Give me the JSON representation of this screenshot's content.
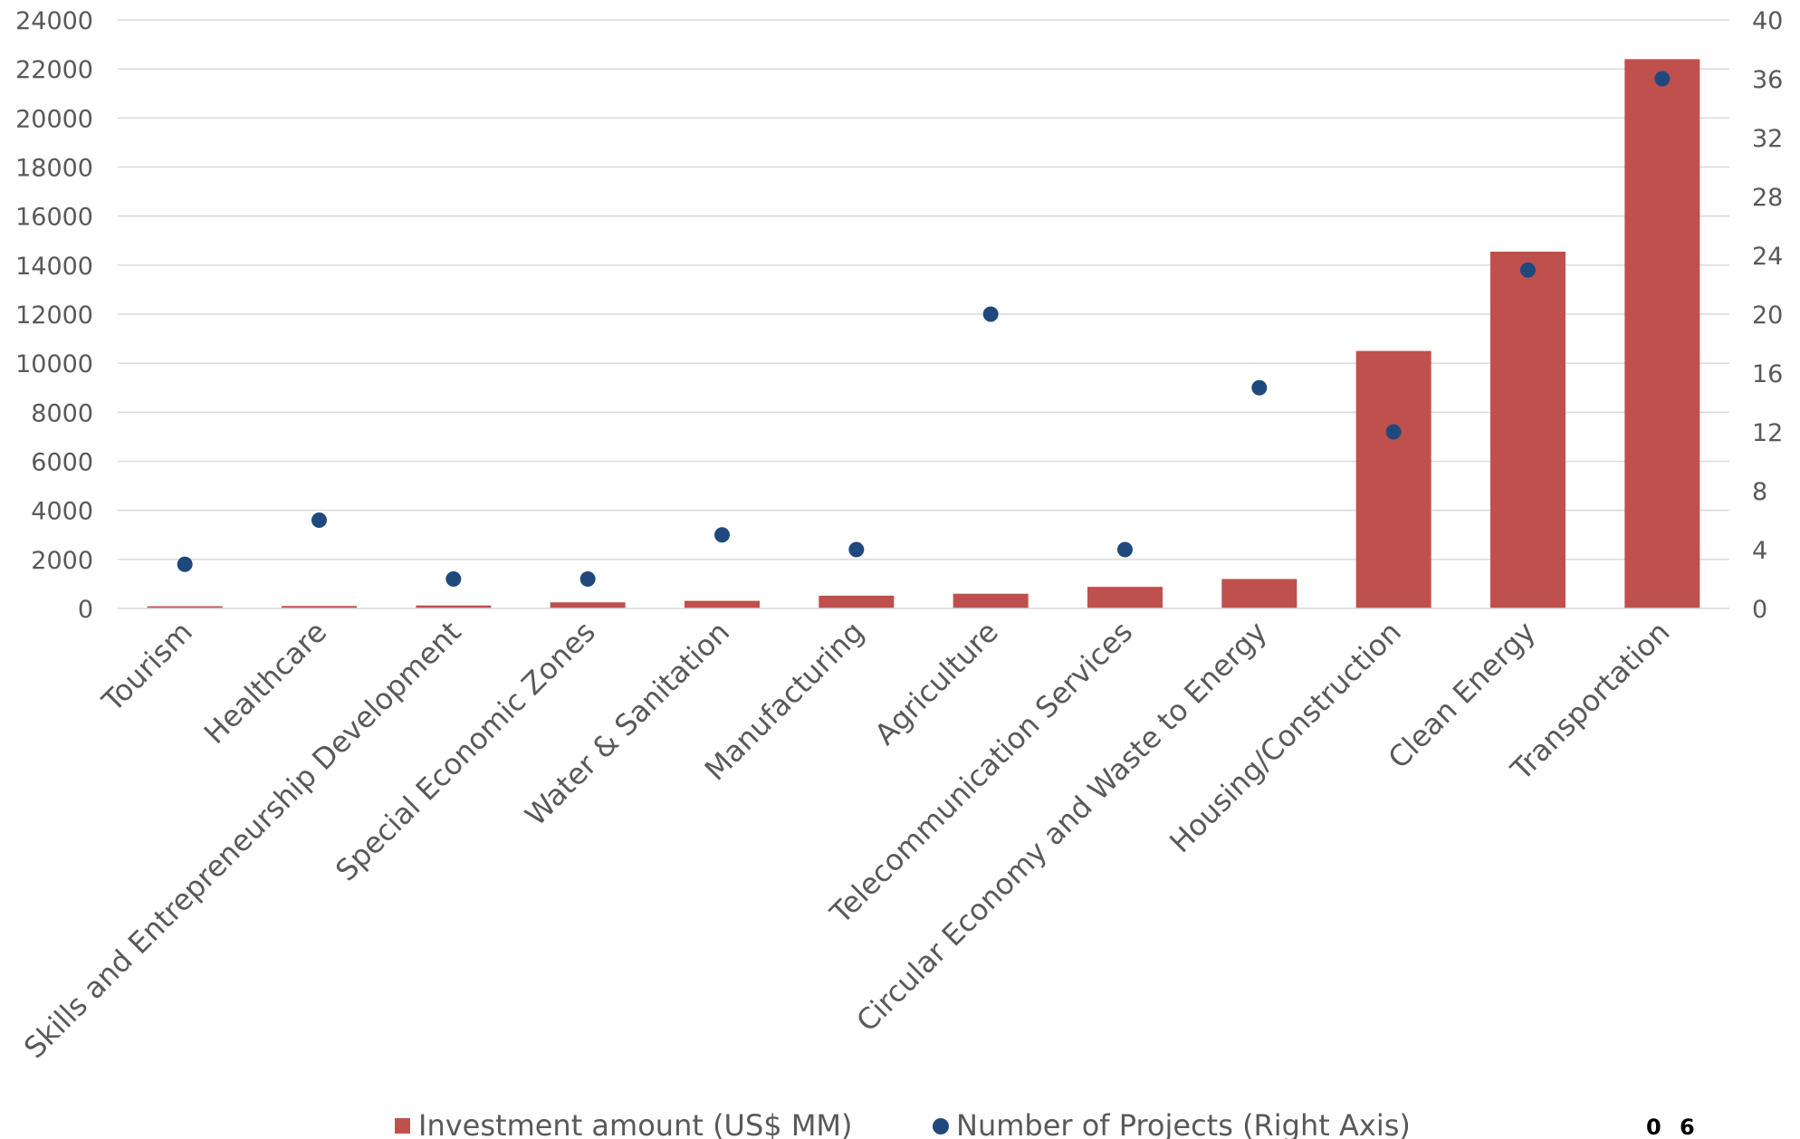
{
  "page_number": "0 6",
  "chart_data": {
    "type": "bar",
    "title": "",
    "xlabel": "",
    "ylabel": "",
    "categories": [
      "Tourism",
      "Healthcare",
      "Skills and Entrepreneurship Development",
      "Special Economic Zones",
      "Water & Sanitation",
      "Manufacturing",
      "Agriculture",
      "Telecommunication Services",
      "Circular Economy and Waste to Energy",
      "Housing/Construction",
      "Clean Energy",
      "Transportation"
    ],
    "series": [
      {
        "name": "Investment amount (US$ MM)",
        "type": "bar",
        "axis": "left",
        "color": "#c0504d",
        "values": [
          90,
          100,
          120,
          250,
          310,
          520,
          600,
          880,
          1200,
          10500,
          14550,
          22400
        ]
      },
      {
        "name": "Number of Projects (Right Axis)",
        "type": "scatter",
        "axis": "right",
        "color": "#1f497d",
        "values": [
          3,
          6,
          2,
          2,
          5,
          4,
          20,
          4,
          15,
          12,
          23,
          36
        ]
      }
    ],
    "ylim": [
      0,
      24000
    ],
    "yticks": [
      "0",
      "2000",
      "4000",
      "6000",
      "8000",
      "10000",
      "12000",
      "14000",
      "16000",
      "18000",
      "20000",
      "22000",
      "24000"
    ],
    "y2lim": [
      0,
      40
    ],
    "y2ticks": [
      "0",
      "4",
      "8",
      "12",
      "16",
      "20",
      "24",
      "28",
      "32",
      "36",
      "40"
    ],
    "grid": true,
    "legend_position": "bottom"
  }
}
